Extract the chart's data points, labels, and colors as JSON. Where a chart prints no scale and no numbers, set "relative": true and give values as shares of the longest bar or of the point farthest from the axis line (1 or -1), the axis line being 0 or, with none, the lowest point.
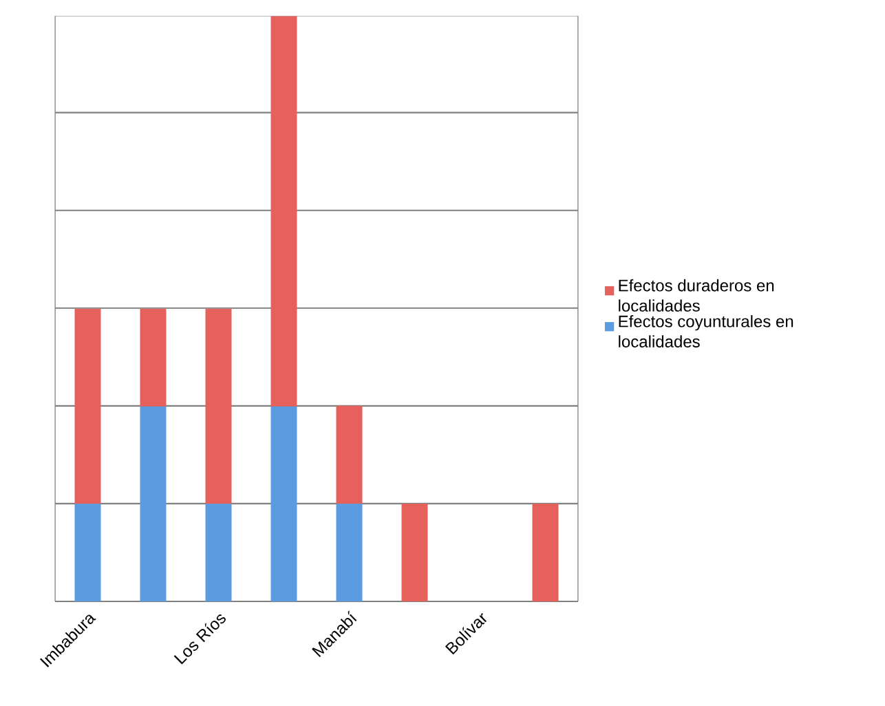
{
  "chart_data": {
    "type": "bar",
    "stacked": true,
    "relative": true,
    "categories": [
      "Imbabura",
      null,
      "Los Ríos",
      null,
      "Manabí",
      null,
      "Bolívar",
      null
    ],
    "series": [
      {
        "name": "Efectos coyunturales en localidades",
        "color": "#5b9be0",
        "values": [
          0.167,
          0.333,
          0.167,
          0.333,
          0.167,
          0,
          0,
          0
        ]
      },
      {
        "name": "Efectos duraderos en localidades",
        "color": "#e6605c",
        "values": [
          0.333,
          0.167,
          0.333,
          0.667,
          0.167,
          0.167,
          0,
          0.167
        ]
      }
    ],
    "grid": "y",
    "legend": "right"
  }
}
